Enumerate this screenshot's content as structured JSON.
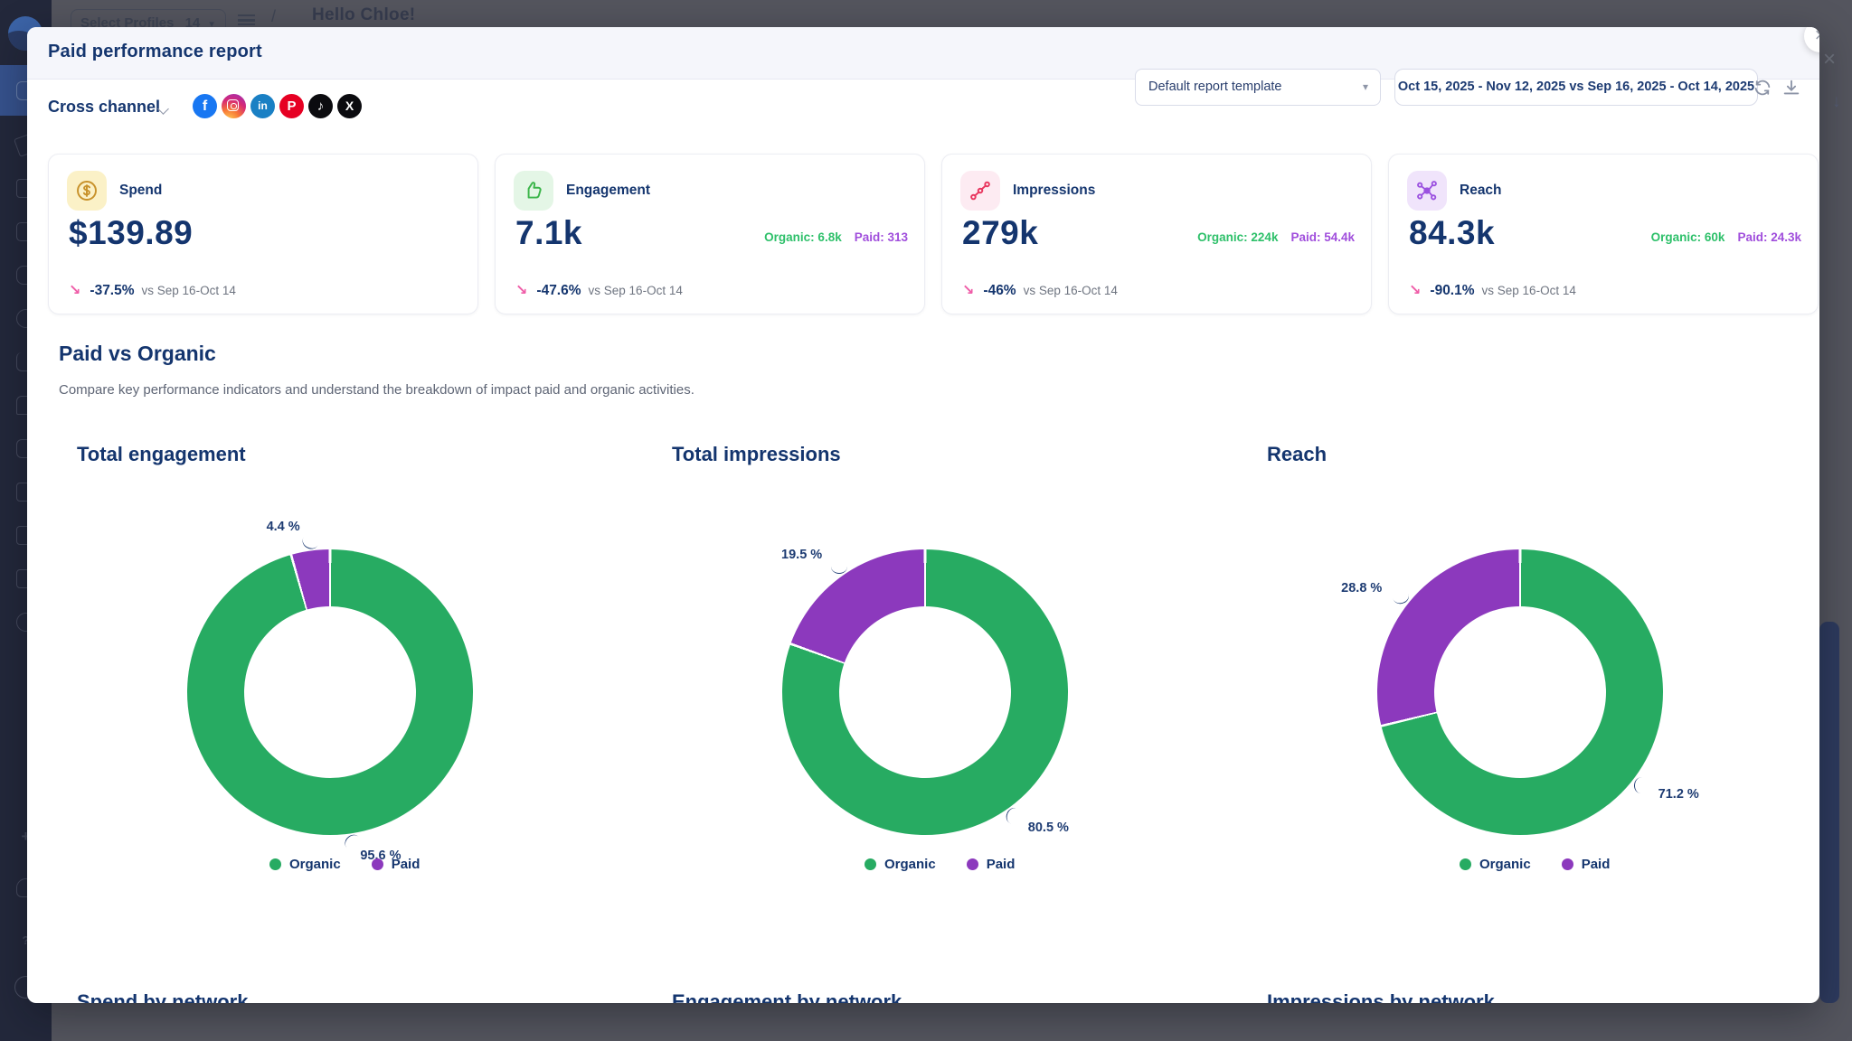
{
  "backdrop": {
    "select_profiles_label": "Select Profiles",
    "profiles_count": "14",
    "greeting": "Hello Chloe!",
    "slash": "/"
  },
  "modal": {
    "title": "Paid performance report",
    "close_glyph": "×"
  },
  "toolbar": {
    "channel_label": "Cross channel",
    "networks": [
      {
        "name": "facebook",
        "glyph": "f"
      },
      {
        "name": "instagram",
        "glyph": ""
      },
      {
        "name": "linkedin",
        "glyph": "in"
      },
      {
        "name": "pinterest",
        "glyph": "P"
      },
      {
        "name": "tiktok",
        "glyph": "♪"
      },
      {
        "name": "x",
        "glyph": "X"
      }
    ],
    "template_select_value": "Default report template",
    "template_caret": "▾",
    "date_range_value": "Oct 15, 2025 - Nov 12, 2025 vs Sep 16, 2025 - Oct 14, 2025"
  },
  "kpis": [
    {
      "label": "Spend",
      "value": "$139.89",
      "delta": "-37.5%",
      "compare": "vs Sep 16-Oct 14",
      "arrow": "↘",
      "icon": "dollar-circle-icon"
    },
    {
      "label": "Engagement",
      "value": "7.1k",
      "organic": "Organic: 6.8k",
      "paid": "Paid: 313",
      "delta": "-47.6%",
      "compare": "vs Sep 16-Oct 14",
      "arrow": "↘",
      "icon": "thumbs-up-icon"
    },
    {
      "label": "Impressions",
      "value": "279k",
      "organic": "Organic: 224k",
      "paid": "Paid: 54.4k",
      "delta": "-46%",
      "compare": "vs Sep 16-Oct 14",
      "arrow": "↘",
      "icon": "share-nodes-icon"
    },
    {
      "label": "Reach",
      "value": "84.3k",
      "organic": "Organic: 60k",
      "paid": "Paid: 24.3k",
      "delta": "-90.1%",
      "compare": "vs Sep 16-Oct 14",
      "arrow": "↘",
      "icon": "network-icon"
    }
  ],
  "section": {
    "title": "Paid vs Organic",
    "description": "Compare key performance indicators and understand the breakdown of impact paid and organic activities."
  },
  "chart_data": [
    {
      "type": "pie",
      "variant": "donut",
      "title": "Total engagement",
      "series": [
        {
          "name": "Organic",
          "value": 95.6
        },
        {
          "name": "Paid",
          "value": 4.4
        }
      ],
      "unit": "%",
      "organic_label": "95.6 %",
      "paid_label": "4.4 %",
      "legend_position": "bottom"
    },
    {
      "type": "pie",
      "variant": "donut",
      "title": "Total impressions",
      "series": [
        {
          "name": "Organic",
          "value": 80.5
        },
        {
          "name": "Paid",
          "value": 19.5
        }
      ],
      "unit": "%",
      "organic_label": "80.5 %",
      "paid_label": "19.5 %",
      "legend_position": "bottom"
    },
    {
      "type": "pie",
      "variant": "donut",
      "title": "Reach",
      "series": [
        {
          "name": "Organic",
          "value": 71.2
        },
        {
          "name": "Paid",
          "value": 28.8
        }
      ],
      "unit": "%",
      "organic_label": "71.2 %",
      "paid_label": "28.8 %",
      "legend_position": "bottom"
    }
  ],
  "legend": {
    "organic": "Organic",
    "paid": "Paid"
  },
  "bottom_sections": [
    "Spend by network",
    "Engagement by network",
    "Impressions by network"
  ],
  "colors": {
    "navy_text": "#14356E",
    "organic_green": "#27AB62",
    "paid_purple": "#8C39BD",
    "organic_stat_text": "#2EC06A",
    "paid_stat_text": "#A04EDC",
    "delta_arrow_pink": "#EF5DA8",
    "muted_gray": "#6E7480",
    "spend_icon": "#C8922B",
    "spend_icon_bg": "#FBF1C7",
    "engagement_icon": "#3BB54A",
    "engagement_icon_bg": "#E4F6E6",
    "impressions_icon": "#E8355E",
    "impressions_icon_bg": "#FDEBF2",
    "reach_icon": "#9B51E0",
    "reach_icon_bg": "#F0E4FB",
    "modal_header_bg": "#F5F6FB",
    "sidebar_bg": "#23283B",
    "overlay": "#54555E",
    "scrollbar_thumb": "#2E3B5F"
  }
}
